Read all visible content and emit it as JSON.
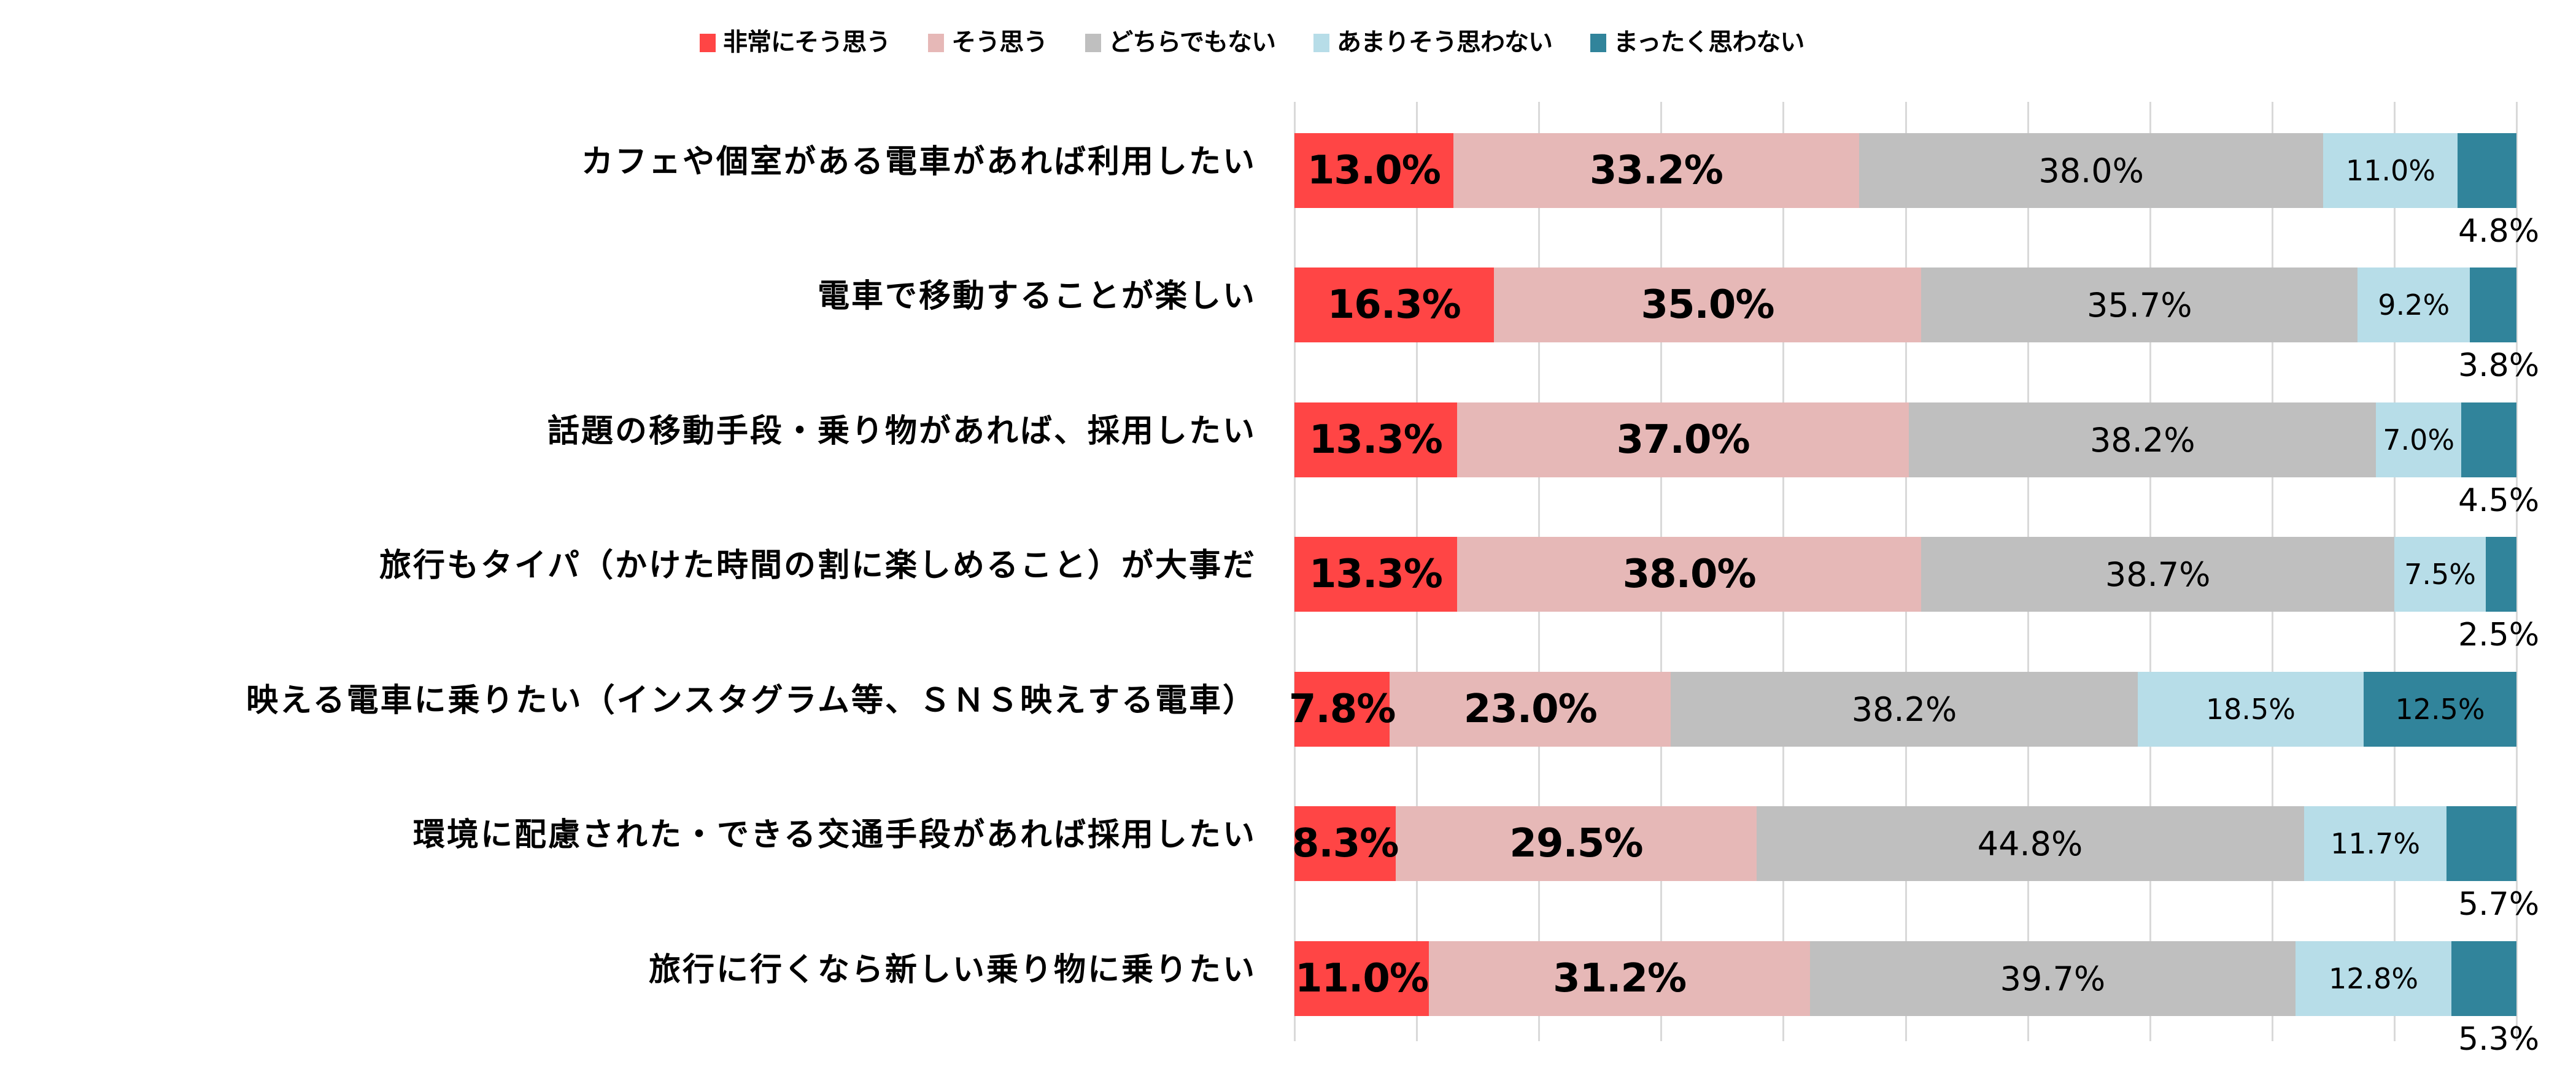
{
  "legend": [
    {
      "label": "非常にそう思う",
      "color": "#FF4545"
    },
    {
      "label": "そう思う",
      "color": "#E6B8B7"
    },
    {
      "label": "どちらでもない",
      "color": "#BFBFBF"
    },
    {
      "label": "あまりそう思わない",
      "color": "#B7DDE8"
    },
    {
      "label": "まったく思わない",
      "color": "#31849B"
    }
  ],
  "rows": [
    {
      "label": "カフェや個室がある電車があれば利用したい",
      "values": [
        "13.0%",
        "33.2%",
        "38.0%",
        "11.0%",
        "4.8%"
      ]
    },
    {
      "label": "電車で移動することが楽しい",
      "values": [
        "16.3%",
        "35.0%",
        "35.7%",
        "9.2%",
        "3.8%"
      ]
    },
    {
      "label": "話題の移動手段・乗り物があれば、採用したい",
      "values": [
        "13.3%",
        "37.0%",
        "38.2%",
        "7.0%",
        "4.5%"
      ]
    },
    {
      "label": "旅行もタイパ（かけた時間の割に楽しめること）が大事だ",
      "values": [
        "13.3%",
        "38.0%",
        "38.7%",
        "7.5%",
        "2.5%"
      ]
    },
    {
      "label": "映える電車に乗りたい（インスタグラム等、ＳＮＳ映えする電車）",
      "values": [
        "7.8%",
        "23.0%",
        "38.2%",
        "18.5%",
        "12.5%"
      ]
    },
    {
      "label": "環境に配慮された・できる交通手段があれば採用したい",
      "values": [
        "8.3%",
        "29.5%",
        "44.8%",
        "11.7%",
        "5.7%"
      ]
    },
    {
      "label": "旅行に行くなら新しい乗り物に乗りたい",
      "values": [
        "11.0%",
        "31.2%",
        "39.7%",
        "12.8%",
        "5.3%"
      ]
    }
  ],
  "chart_data": {
    "type": "bar",
    "orientation": "horizontal",
    "stacked": "100%",
    "title": "",
    "xlabel": "",
    "ylabel": "",
    "xlim": [
      0,
      100
    ],
    "grid": true,
    "legend_position": "top",
    "categories": [
      "カフェや個室がある電車があれば利用したい",
      "電車で移動することが楽しい",
      "話題の移動手段・乗り物があれば、採用したい",
      "旅行もタイパ（かけた時間の割に楽しめること）が大事だ",
      "映える電車に乗りたい（インスタグラム等、ＳＮＳ映えする電車）",
      "環境に配慮された・できる交通手段があれば採用したい",
      "旅行に行くなら新しい乗り物に乗りたい"
    ],
    "series": [
      {
        "name": "非常にそう思う",
        "color": "#FF4545",
        "values": [
          13.0,
          16.3,
          13.3,
          13.3,
          7.8,
          8.3,
          11.0
        ]
      },
      {
        "name": "そう思う",
        "color": "#E6B8B7",
        "values": [
          33.2,
          35.0,
          37.0,
          38.0,
          23.0,
          29.5,
          31.2
        ]
      },
      {
        "name": "どちらでもない",
        "color": "#BFBFBF",
        "values": [
          38.0,
          35.7,
          38.2,
          38.7,
          38.2,
          44.8,
          39.7
        ]
      },
      {
        "name": "あまりそう思わない",
        "color": "#B7DDE8",
        "values": [
          11.0,
          9.2,
          7.0,
          7.5,
          18.5,
          11.7,
          12.8
        ]
      },
      {
        "name": "まったく思わない",
        "color": "#31849B",
        "values": [
          4.8,
          3.8,
          4.5,
          2.5,
          12.5,
          5.7,
          5.3
        ]
      }
    ]
  }
}
